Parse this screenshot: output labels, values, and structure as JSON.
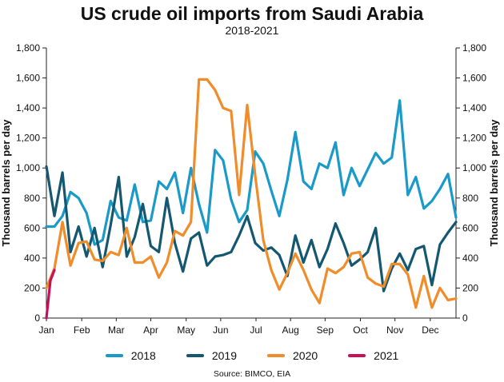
{
  "chart_data": {
    "type": "line",
    "title": "US crude oil imports from Saudi Arabia",
    "subtitle": "2018-2021",
    "ylabel": "Thousand barrels per day",
    "ylabel_right": "Thousand barrels per day",
    "xlabel": "",
    "ylim": [
      0,
      1800
    ],
    "yticks": [
      0,
      200,
      400,
      600,
      800,
      1000,
      1200,
      1400,
      1600,
      1800
    ],
    "ytick_labels": [
      "0",
      "200",
      "400",
      "600",
      "800",
      "1,000",
      "1,200",
      "1,400",
      "1,600",
      "1,800"
    ],
    "xlim": [
      1,
      52
    ],
    "x_unit": "week of year",
    "month_labels": [
      "Jan",
      "Feb",
      "Mar",
      "Apr",
      "May",
      "Jun",
      "Jul",
      "Aug",
      "Sep",
      "Oct",
      "Nov",
      "Dec"
    ],
    "month_positions": [
      1,
      5.4,
      9.7,
      14,
      18.4,
      22.7,
      27.1,
      31.4,
      35.7,
      40.1,
      44.4,
      48.8
    ],
    "grid": false,
    "legend_position": "bottom",
    "source": "Source: BIMCO, EIA",
    "series": [
      {
        "name": "2018",
        "color": "#1a9ac9",
        "x": [
          1,
          2,
          3,
          4,
          5,
          6,
          7,
          8,
          9,
          10,
          11,
          12,
          13,
          14,
          15,
          16,
          17,
          18,
          19,
          20,
          21,
          22,
          23,
          24,
          25,
          26,
          27,
          28,
          29,
          30,
          31,
          32,
          33,
          34,
          35,
          36,
          37,
          38,
          39,
          40,
          41,
          42,
          43,
          44,
          45,
          46,
          47,
          48,
          49,
          50,
          51,
          52
        ],
        "values": [
          610,
          610,
          680,
          840,
          800,
          700,
          490,
          520,
          780,
          670,
          650,
          890,
          640,
          650,
          910,
          860,
          970,
          700,
          1000,
          760,
          570,
          1120,
          1050,
          790,
          640,
          720,
          1110,
          1030,
          850,
          680,
          920,
          1240,
          910,
          860,
          1030,
          1000,
          1170,
          820,
          1000,
          880,
          990,
          1100,
          1030,
          1070,
          1450,
          820,
          940,
          730,
          780,
          860,
          960,
          670
        ]
      },
      {
        "name": "2019",
        "color": "#135870",
        "x": [
          1,
          2,
          3,
          4,
          5,
          6,
          7,
          8,
          9,
          10,
          11,
          12,
          13,
          14,
          15,
          16,
          17,
          18,
          19,
          20,
          21,
          22,
          23,
          24,
          25,
          26,
          27,
          28,
          29,
          30,
          31,
          32,
          33,
          34,
          35,
          36,
          37,
          38,
          39,
          40,
          41,
          42,
          43,
          44,
          45,
          46,
          47,
          48,
          49,
          50,
          51,
          52
        ],
        "values": [
          1010,
          680,
          970,
          440,
          610,
          410,
          600,
          340,
          620,
          940,
          410,
          540,
          760,
          480,
          440,
          800,
          500,
          310,
          530,
          570,
          350,
          410,
          420,
          440,
          550,
          680,
          500,
          450,
          470,
          420,
          280,
          550,
          370,
          520,
          340,
          460,
          630,
          500,
          350,
          390,
          440,
          600,
          180,
          330,
          430,
          320,
          460,
          480,
          220,
          490,
          570,
          640
        ]
      },
      {
        "name": "2020",
        "color": "#f08c2a",
        "x": [
          1,
          2,
          3,
          4,
          5,
          6,
          7,
          8,
          9,
          10,
          11,
          12,
          13,
          14,
          15,
          16,
          17,
          18,
          19,
          20,
          21,
          22,
          23,
          24,
          25,
          26,
          27,
          28,
          29,
          30,
          31,
          32,
          33,
          34,
          35,
          36,
          37,
          38,
          39,
          40,
          41,
          42,
          43,
          44,
          45,
          46,
          47,
          48,
          49,
          50,
          51,
          52
        ],
        "values": [
          200,
          330,
          640,
          350,
          500,
          510,
          390,
          380,
          440,
          420,
          600,
          370,
          370,
          410,
          270,
          370,
          580,
          550,
          640,
          1590,
          1590,
          1520,
          1400,
          1380,
          820,
          1420,
          950,
          520,
          320,
          190,
          300,
          430,
          320,
          190,
          100,
          330,
          300,
          340,
          430,
          440,
          270,
          230,
          210,
          360,
          360,
          290,
          70,
          280,
          70,
          200,
          120,
          130
        ]
      },
      {
        "name": "2021",
        "color": "#c8105a",
        "x": [
          1,
          1.5,
          2
        ],
        "values": [
          0,
          250,
          320
        ]
      }
    ]
  }
}
